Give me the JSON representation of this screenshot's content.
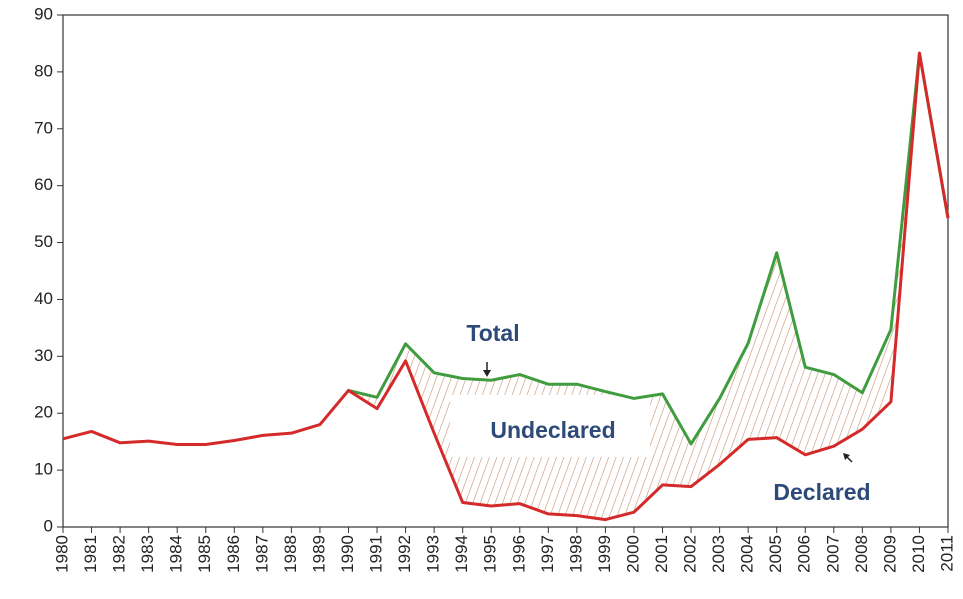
{
  "chart_data": {
    "type": "line",
    "categories": [
      "1980",
      "1981",
      "1982",
      "1983",
      "1984",
      "1985",
      "1986",
      "1987",
      "1988",
      "1989",
      "1990",
      "1991",
      "1992",
      "1993",
      "1994",
      "1995",
      "1996",
      "1997",
      "1998",
      "1999",
      "2000",
      "2001",
      "2002",
      "2003",
      "2004",
      "2005",
      "2006",
      "2007",
      "2008",
      "2009",
      "2010",
      "2011"
    ],
    "series": [
      {
        "name": "Total",
        "color": "#3f9c3f",
        "values": [
          null,
          null,
          null,
          null,
          null,
          null,
          null,
          null,
          null,
          null,
          24,
          22.8,
          32.2,
          27.1,
          26.1,
          25.8,
          26.8,
          25.1,
          25.1,
          23.8,
          22.6,
          23.4,
          14.6,
          22.6,
          32.3,
          48.2,
          28.1,
          26.8,
          23.6,
          34.7,
          83.3,
          54.3
        ]
      },
      {
        "name": "Declared",
        "color": "#d42a2a",
        "values": [
          15.5,
          16.8,
          14.8,
          15.1,
          14.5,
          14.5,
          15.2,
          16.1,
          16.5,
          18,
          24,
          20.8,
          29.2,
          16.5,
          4.3,
          3.7,
          4.1,
          2.3,
          2,
          1.3,
          2.6,
          7.4,
          7.1,
          11,
          15.4,
          15.7,
          12.7,
          14.2,
          17.2,
          22,
          83.3,
          54.3
        ]
      }
    ],
    "annotations": [
      "Undeclared"
    ],
    "ylim": [
      0,
      90
    ],
    "yticks": [
      0,
      10,
      20,
      30,
      40,
      50,
      60,
      70,
      80,
      90
    ],
    "grid": false
  }
}
